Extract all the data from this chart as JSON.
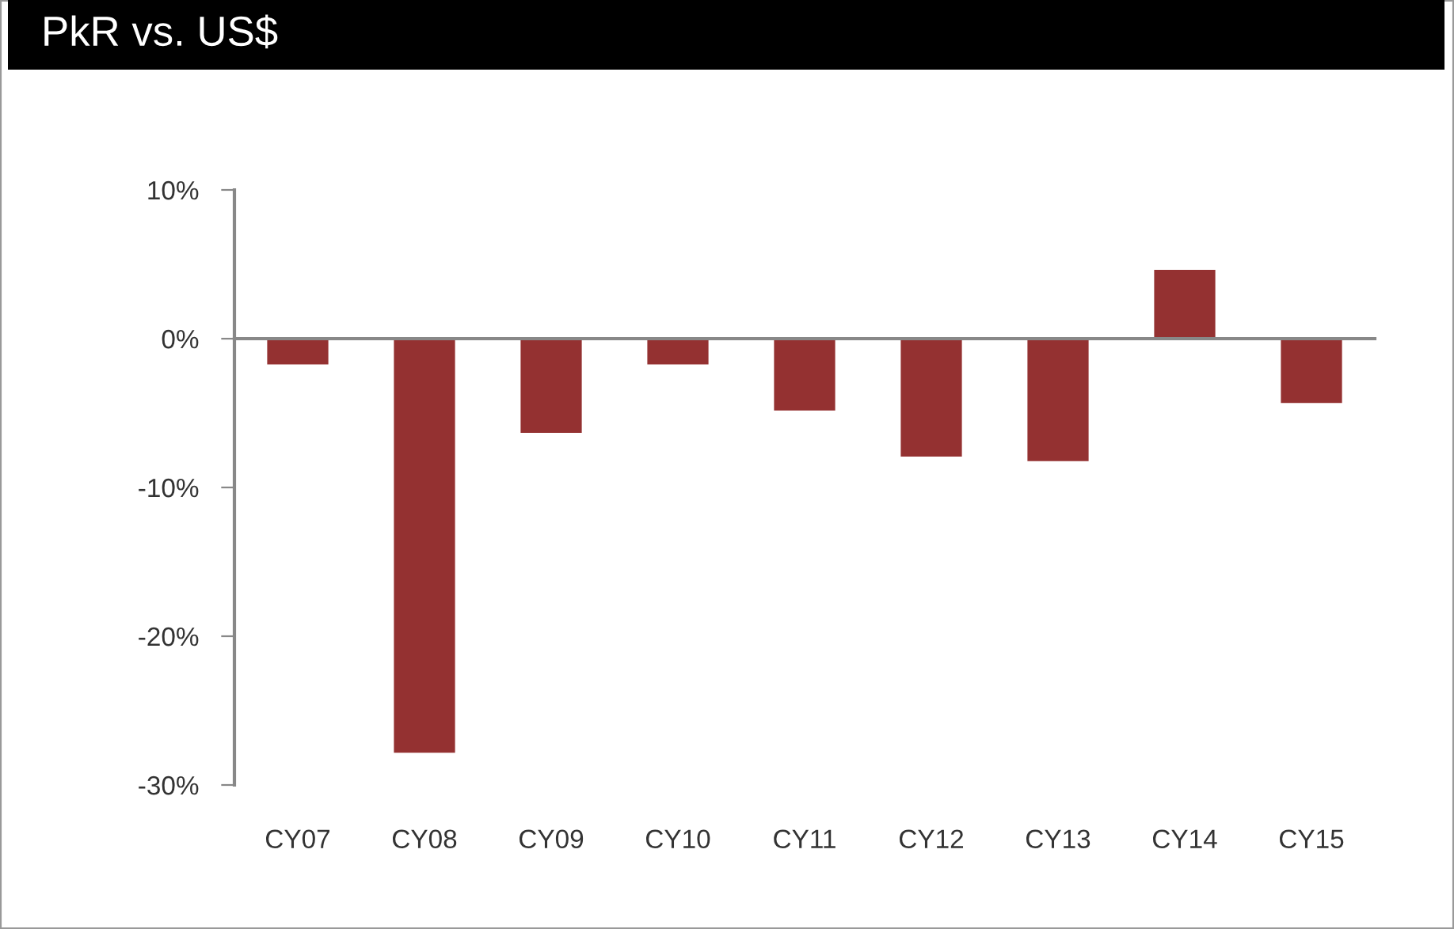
{
  "chart_data": {
    "type": "bar",
    "title": "PkR vs. US$",
    "categories": [
      "CY07",
      "CY08",
      "CY09",
      "CY10",
      "CY11",
      "CY12",
      "CY13",
      "CY14",
      "CY15"
    ],
    "values": [
      -1.8,
      -27.9,
      -6.4,
      -1.8,
      -4.9,
      -8.0,
      -8.3,
      4.7,
      -4.4
    ],
    "color": "#943131",
    "ylim": [
      -30,
      10
    ],
    "yticks": [
      {
        "value": -30,
        "label": "-30%"
      },
      {
        "value": -20,
        "label": "-20%"
      },
      {
        "value": -10,
        "label": "-10%"
      },
      {
        "value": 0,
        "label": "0%"
      },
      {
        "value": 10,
        "label": "10%"
      }
    ]
  }
}
